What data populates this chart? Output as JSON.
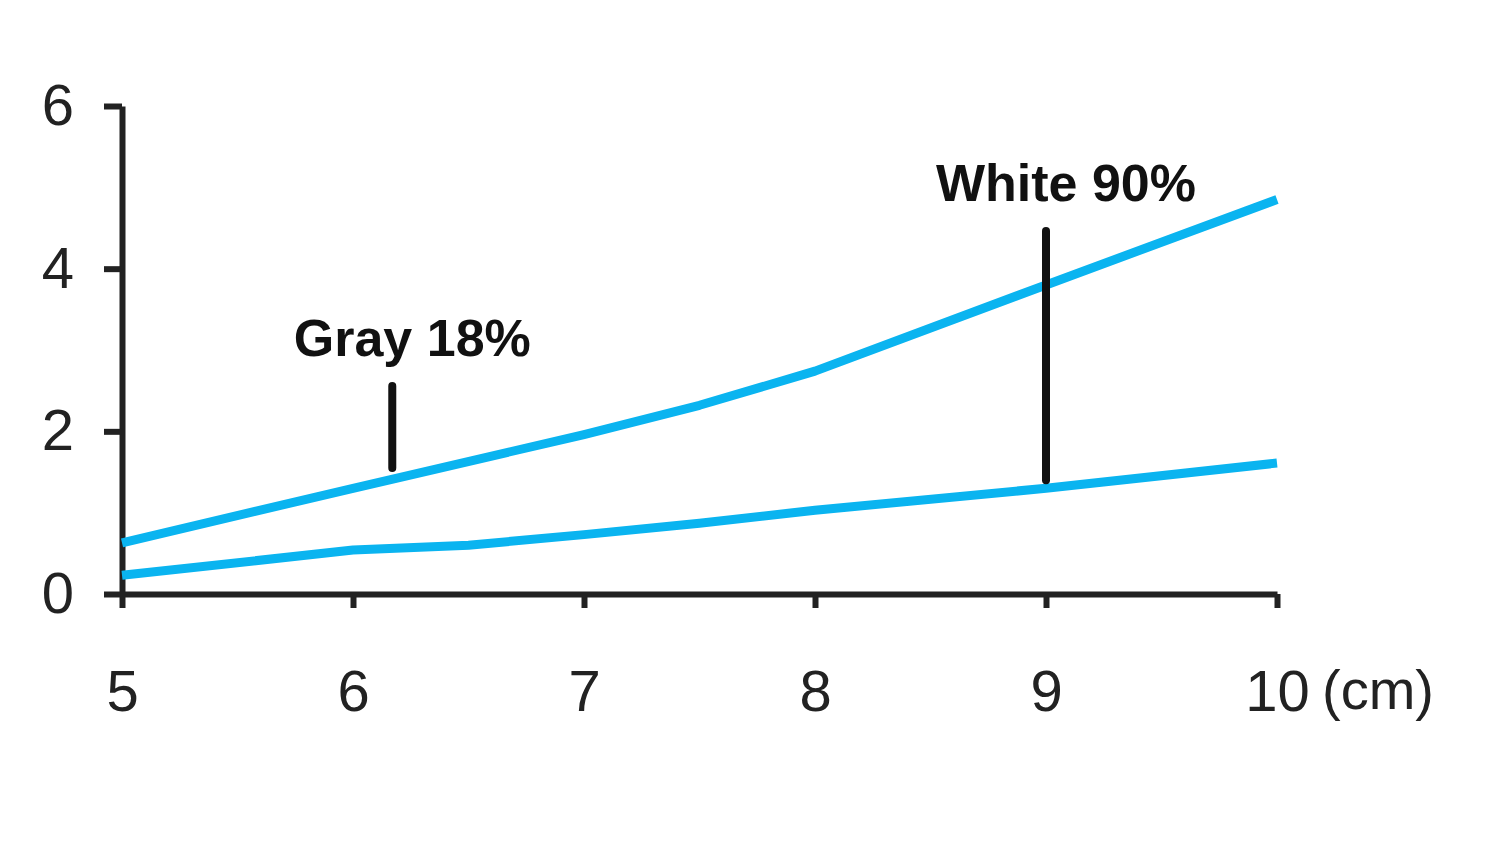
{
  "chart_data": {
    "type": "line",
    "xlabel": "(cm)",
    "xlim": [
      5,
      10
    ],
    "xticks": [
      5,
      6,
      7,
      8,
      9,
      10
    ],
    "ylim": [
      0,
      6
    ],
    "yticks": [
      0,
      2,
      4,
      6
    ],
    "marker": "none",
    "line_style": "solid",
    "series": [
      {
        "color": "#0ab4f0",
        "x": [
          5,
          6,
          7,
          7.5,
          8,
          9,
          10
        ],
        "values": [
          0.63,
          1.3,
          1.96,
          2.32,
          2.74,
          3.8,
          4.85
        ]
      },
      {
        "color": "#0ab4f0",
        "x": [
          5,
          6,
          6.5,
          7,
          7.5,
          8,
          9,
          10
        ],
        "values": [
          0.23,
          0.54,
          0.6,
          0.73,
          0.87,
          1.03,
          1.3,
          1.61
        ]
      }
    ],
    "annotations": [
      {
        "text": "Gray 18%",
        "x": 6.17,
        "y": 1.45
      },
      {
        "text": "White 90%",
        "x": 9,
        "y": 1.3
      }
    ]
  }
}
